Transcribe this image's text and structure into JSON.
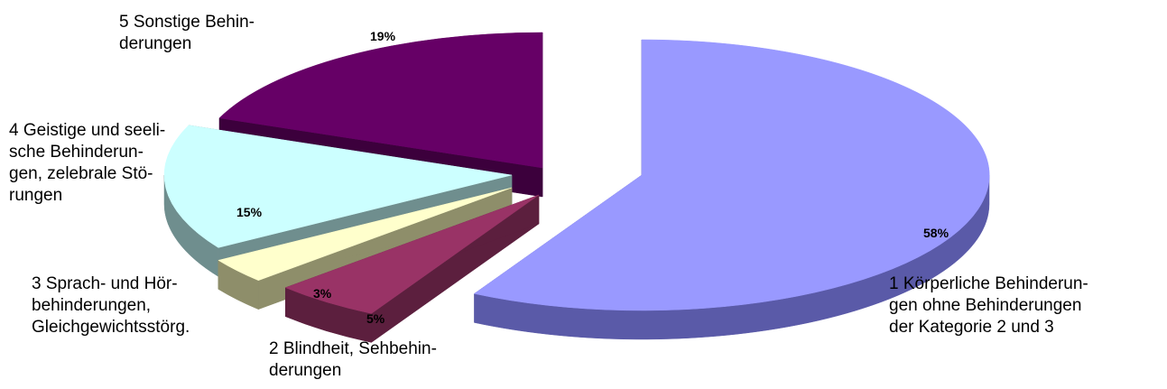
{
  "chart_data": {
    "type": "pie",
    "title": "",
    "categories": [
      "1 Körperliche Behinderungen ohne Behinderungen der Kategorie 2 und 3",
      "2 Blindheit, Sehbehinderungen",
      "3 Sprach- und Hörbehinderungen, Gleichgewichtsstörg.",
      "4 Geistige und seelische Behinderungen, zelebrale Störungen",
      "5 Sonstige Behinderungen"
    ],
    "category_labels": [
      "1 Körperliche Behinderun-\ngen ohne Behinderungen\nder Kategorie 2 und 3",
      "2 Blindheit, Sehbehin-\nderungen",
      "3 Sprach- und Hör-\nbehinderungen,\nGleichgewichtsstörg.",
      "4 Geistige und seeli-\nsche Behinderun-\ngen, zelebrale Stö-\nrungen",
      "5 Sonstige Behin-\nderungen"
    ],
    "values": [
      58,
      5,
      3,
      15,
      19
    ],
    "value_labels": [
      "58%",
      "5%",
      "3%",
      "15%",
      "19%"
    ],
    "exploded": true,
    "three_d": true,
    "colors": [
      "#9999FF",
      "#993366",
      "#FFFFCC",
      "#CCFFFF",
      "#660066"
    ],
    "side_colors": [
      "#5A5AA8",
      "#5C1F3E",
      "#8E8E6A",
      "#6F8E8E",
      "#3C003C"
    ]
  }
}
